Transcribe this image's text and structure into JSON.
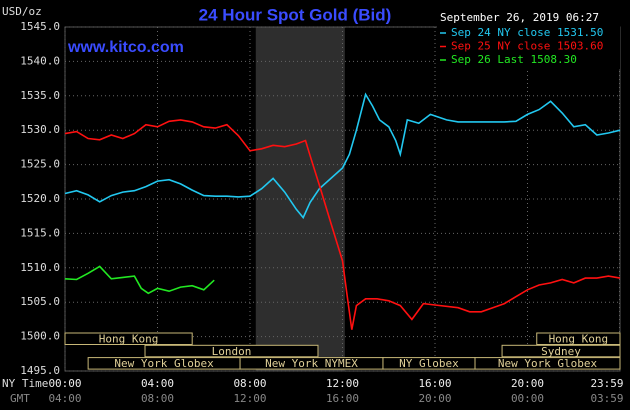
{
  "chart_data": {
    "type": "line",
    "title": "24 Hour Spot Gold (Bid)",
    "watermark": "www.kitco.com",
    "y_label": "USD/oz",
    "timestamp": "September 26, 2019 06:27",
    "x_label": "NY Time",
    "x2_label": "GMT",
    "xlim": [
      0,
      24
    ],
    "ylim": [
      1495,
      1545
    ],
    "xticks": [
      {
        "value": 0,
        "label": "00:00"
      },
      {
        "value": 4,
        "label": "04:00"
      },
      {
        "value": 8,
        "label": "08:00"
      },
      {
        "value": 12,
        "label": "12:00"
      },
      {
        "value": 16,
        "label": "16:00"
      },
      {
        "value": 20,
        "label": "20:00"
      },
      {
        "value": 23.98,
        "label": "23:59"
      }
    ],
    "x2ticks": [
      {
        "value": 0,
        "label": "04:00"
      },
      {
        "value": 4,
        "label": "08:00"
      },
      {
        "value": 8,
        "label": "12:00"
      },
      {
        "value": 12,
        "label": "16:00"
      },
      {
        "value": 16,
        "label": "20:00"
      },
      {
        "value": 20,
        "label": "00:00"
      },
      {
        "value": 23.98,
        "label": "03:59"
      }
    ],
    "yticks": [
      {
        "value": 1495,
        "label": "1495.0"
      },
      {
        "value": 1500,
        "label": "1500.0"
      },
      {
        "value": 1505,
        "label": "1505.0"
      },
      {
        "value": 1510,
        "label": "1510.0"
      },
      {
        "value": 1515,
        "label": "1515.0"
      },
      {
        "value": 1520,
        "label": "1520.0"
      },
      {
        "value": 1525,
        "label": "1525.0"
      },
      {
        "value": 1530,
        "label": "1530.0"
      },
      {
        "value": 1535,
        "label": "1535.0"
      },
      {
        "value": 1540,
        "label": "1540.0"
      },
      {
        "value": 1545,
        "label": "1545.0"
      }
    ],
    "grid": true,
    "shaded_x": [
      8.25,
      12.1
    ],
    "session_rows": [
      [
        {
          "label": "Hong Kong",
          "start": 0,
          "end": 5.5
        },
        {
          "label": "Hong Kong",
          "start": 20.4,
          "end": 24
        }
      ],
      [
        {
          "label": "London",
          "start": 3.46,
          "end": 10.94
        },
        {
          "label": "Sydney",
          "start": 18.9,
          "end": 24
        }
      ],
      [
        {
          "label": "New York Globex",
          "start": 1,
          "end": 7.57
        },
        {
          "label": "New York NYMEX",
          "start": 7.57,
          "end": 13.75
        },
        {
          "label": "NY Globex",
          "start": 13.75,
          "end": 17.73
        },
        {
          "label": "New York Globex",
          "start": 17.73,
          "end": 24
        }
      ]
    ],
    "series": [
      {
        "name": "Sep 24 NY close 1531.50",
        "color": "#22c8f0",
        "x": [
          0,
          0.5,
          1,
          1.5,
          2,
          2.5,
          3,
          3.5,
          4,
          4.5,
          5,
          5.5,
          6,
          6.5,
          7,
          7.5,
          8,
          8.5,
          9,
          9.5,
          10,
          10.3,
          10.6,
          11,
          11.5,
          12,
          12.3,
          12.6,
          13,
          13.3,
          13.6,
          14,
          14.3,
          14.5,
          14.8,
          15.3,
          15.8,
          16.5,
          17,
          18,
          19,
          19.5,
          20,
          20.5,
          21,
          21.5,
          22,
          22.5,
          23,
          23.5,
          24
        ],
        "values": [
          1520.8,
          1521.2,
          1520.6,
          1519.6,
          1520.5,
          1521,
          1521.2,
          1521.8,
          1522.6,
          1522.8,
          1522.2,
          1521.3,
          1520.5,
          1520.4,
          1520.4,
          1520.3,
          1520.4,
          1521.5,
          1523,
          1521,
          1518.5,
          1517.3,
          1519.5,
          1521.5,
          1523,
          1524.5,
          1526.5,
          1530,
          1535.2,
          1533.5,
          1531.5,
          1530.5,
          1528.5,
          1526.5,
          1531.5,
          1531,
          1532.3,
          1531.5,
          1531.2,
          1531.2,
          1531.2,
          1531.3,
          1532.3,
          1533,
          1534.2,
          1532.5,
          1530.5,
          1530.8,
          1529.3,
          1529.6,
          1530
        ]
      },
      {
        "name": "Sep 25 NY close 1503.60",
        "color": "#ff1010",
        "x": [
          0,
          0.5,
          1,
          1.5,
          2,
          2.5,
          3,
          3.5,
          4,
          4.5,
          5,
          5.5,
          6,
          6.5,
          7,
          7.5,
          8,
          8.5,
          9,
          9.5,
          10,
          10.4,
          10.6,
          11,
          11.5,
          12,
          12.2,
          12.4,
          12.6,
          13,
          13.5,
          14,
          14.5,
          15,
          15.5,
          16,
          17,
          17.5,
          18,
          18.5,
          19,
          19.5,
          20,
          20.5,
          21,
          21.5,
          22,
          22.5,
          23,
          23.5,
          24
        ],
        "values": [
          1529.5,
          1529.8,
          1528.8,
          1528.6,
          1529.3,
          1528.8,
          1529.5,
          1530.8,
          1530.5,
          1531.3,
          1531.5,
          1531.2,
          1530.5,
          1530.3,
          1530.8,
          1529.2,
          1527,
          1527.3,
          1527.8,
          1527.6,
          1528,
          1528.5,
          1526.3,
          1522,
          1516.5,
          1511,
          1506,
          1501,
          1504.5,
          1505.5,
          1505.5,
          1505.2,
          1504.5,
          1502.5,
          1504.8,
          1504.6,
          1504.2,
          1503.6,
          1503.6,
          1504.2,
          1504.8,
          1505.8,
          1506.8,
          1507.5,
          1507.8,
          1508.3,
          1507.8,
          1508.5,
          1508.5,
          1508.8,
          1508.5
        ]
      },
      {
        "name": "Sep 26 Last 1508.30",
        "color": "#22e822",
        "x": [
          0,
          0.5,
          1,
          1.5,
          2,
          2.5,
          3,
          3.3,
          3.6,
          4,
          4.5,
          5,
          5.5,
          6,
          6.45
        ],
        "values": [
          1508.4,
          1508.3,
          1509.2,
          1510.2,
          1508.4,
          1508.6,
          1508.8,
          1507,
          1506.3,
          1507,
          1506.6,
          1507.2,
          1507.4,
          1506.8,
          1508.2
        ]
      }
    ]
  }
}
